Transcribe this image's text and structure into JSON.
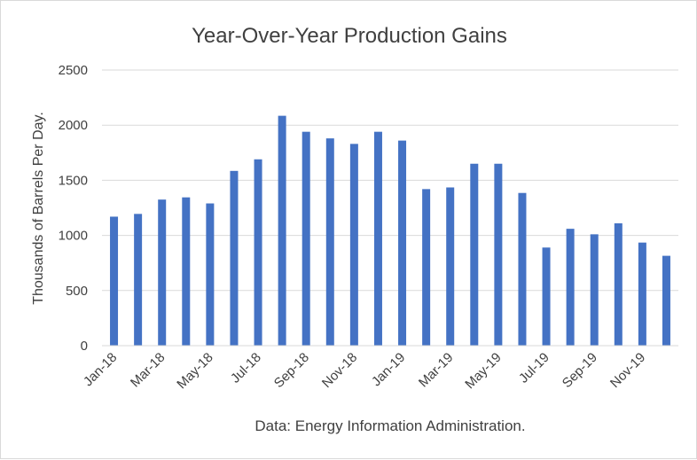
{
  "chart_data": {
    "type": "bar",
    "title": "Year-Over-Year Production Gains",
    "ylabel": "Thousands of Barrels Per Day.",
    "xlabel": "",
    "source_note": "Data: Energy Information Administration.",
    "ylim": [
      0,
      2500
    ],
    "yticks": [
      0,
      500,
      1000,
      1500,
      2000,
      2500
    ],
    "grid": true,
    "legend": "none",
    "bar_color": "#4472c4",
    "grid_color": "#d9d9d9",
    "categories": [
      "Jan-18",
      "Feb-18",
      "Mar-18",
      "Apr-18",
      "May-18",
      "Jun-18",
      "Jul-18",
      "Aug-18",
      "Sep-18",
      "Oct-18",
      "Nov-18",
      "Dec-18",
      "Jan-19",
      "Feb-19",
      "Mar-19",
      "Apr-19",
      "May-19",
      "Jun-19",
      "Jul-19",
      "Aug-19",
      "Sep-19",
      "Oct-19",
      "Nov-19",
      "Dec-19"
    ],
    "tick_labels": [
      "Jan-18",
      "Mar-18",
      "May-18",
      "Jul-18",
      "Sep-18",
      "Nov-18",
      "Jan-19",
      "Mar-19",
      "May-19",
      "Jul-19",
      "Sep-19",
      "Nov-19"
    ],
    "values": [
      1170,
      1195,
      1325,
      1345,
      1290,
      1585,
      1690,
      2085,
      1940,
      1880,
      1830,
      1940,
      1860,
      1420,
      1435,
      1650,
      1650,
      1385,
      890,
      1060,
      1010,
      1110,
      935,
      815
    ]
  }
}
